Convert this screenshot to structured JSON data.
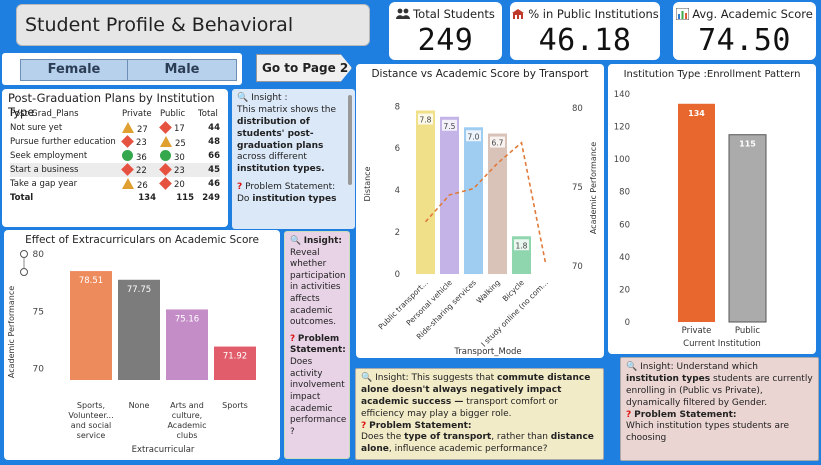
{
  "title": "Student Profile & Behavioral Insights",
  "kpis": [
    {
      "label": "Total Students",
      "value": "249",
      "icon": "people-icon"
    },
    {
      "label": "% in Public Institutions",
      "value": "46.18",
      "icon": "institution-icon"
    },
    {
      "label": "Avg. Academic Score",
      "value": "74.50",
      "icon": "bar-chart-icon"
    }
  ],
  "gender_slicer": {
    "female": "Female",
    "male": "Male"
  },
  "nav": {
    "goto_label": "Go to Page 2"
  },
  "matrix": {
    "title": "Post-Graduation Plans by Institution Type",
    "headers": [
      "Post-Grad_Plans",
      "Private",
      "Public",
      "Total"
    ],
    "rows": [
      {
        "plan": "Not sure yet",
        "private": "27",
        "private_shape": "triangle",
        "public": "17",
        "public_shape": "diamond",
        "total": "44"
      },
      {
        "plan": "Pursue further education",
        "private": "23",
        "private_shape": "diamond",
        "public": "25",
        "public_shape": "triangle",
        "total": "48"
      },
      {
        "plan": "Seek employment",
        "private": "36",
        "private_shape": "circle",
        "public": "30",
        "public_shape": "circle",
        "total": "66"
      },
      {
        "plan": "Start a business",
        "private": "22",
        "private_shape": "diamond",
        "public": "23",
        "public_shape": "diamond",
        "total": "45"
      },
      {
        "plan": "Take a gap year",
        "private": "26",
        "private_shape": "triangle",
        "public": "20",
        "public_shape": "diamond",
        "total": "46"
      }
    ],
    "total_row": {
      "label": "Total",
      "private": "134",
      "public": "115",
      "total": "249"
    },
    "shape_colors": {
      "triangle": "#e0a030",
      "diamond": "#e55240",
      "circle": "#35a84d"
    }
  },
  "insight_matrix": {
    "heading": "Insight :",
    "text_a": "This matrix shows the ",
    "text_b": "distribution of students' post-graduation plans",
    "text_c": " across different ",
    "text_d": "institution types.",
    "problem_label": "Problem Statement:",
    "problem_a": "Do ",
    "problem_b": "institution types"
  },
  "insight_extra": {
    "heading": "Insight:",
    "text": "Reveal whether participation in activities affects academic outcomes.",
    "problem_label": "Problem Statement:",
    "problem_text": "Does activity involvement impact academic performance ?"
  },
  "insight_transport": {
    "lead": "Insight: This suggests that ",
    "bold": "commute distance alone doesn't always negatively impact academic success —",
    "rest": " transport comfort or efficiency may play a bigger role.",
    "problem_label": "Problem Statement:",
    "problem_a": "Does the ",
    "problem_b": "type of transport",
    "problem_c": ", rather than ",
    "problem_d": "distance alone",
    "problem_e": ", influence academic performance?"
  },
  "insight_inst": {
    "lead": "Insight: Understand which ",
    "bold": "institution types",
    "rest": " students are currently enrolling in (Public vs Private), dynamically filtered by Gender.",
    "problem_label": "Problem Statement:",
    "problem_text": "Which institution types students are choosing"
  },
  "chart_data": [
    {
      "type": "bar",
      "title": "Effect of Extracurriculars on Academic Score",
      "xlabel": "Extracurricular",
      "ylabel": "Academic Performance",
      "categories": [
        "Sports, Volunteer... and social service",
        "None",
        "Arts and culture, Academic clubs",
        "Sports"
      ],
      "category_lines": [
        [
          "Sports,",
          "Volunteer...",
          "and social",
          "service"
        ],
        [
          "None"
        ],
        [
          "Arts and",
          "culture,",
          "Academic",
          "clubs"
        ],
        [
          "Sports"
        ]
      ],
      "values": [
        78.51,
        77.75,
        75.16,
        71.92
      ],
      "labels": [
        "78.51",
        "77.75",
        "75.16",
        "71.92"
      ],
      "colors": [
        "#ee8b5d",
        "#7c7c7c",
        "#c48dc8",
        "#e25d6b"
      ],
      "ylim": [
        69,
        80
      ],
      "yticks": [
        70,
        75,
        80
      ]
    },
    {
      "type": "bar+line",
      "title": "Distance vs Academic Score by Transport",
      "xlabel": "Transport_Mode",
      "ylabel": "Distance",
      "ylabel2": "Academic Performance",
      "categories": [
        "Public transport...",
        "Personal vehicle",
        "Ride-sharing services",
        "Walking",
        "Bicycle",
        "I study online (no com..."
      ],
      "series": [
        {
          "name": "Distance",
          "values": [
            7.8,
            7.5,
            7.0,
            6.7,
            1.8,
            0.0
          ]
        },
        {
          "name": "Academic Performance",
          "values": [
            72.8,
            74.5,
            74.9,
            76.5,
            77.8,
            70.2
          ]
        }
      ],
      "bar_labels": [
        "7.8",
        "7.5",
        "7.0",
        "6.7",
        "1.8",
        ""
      ],
      "colors": [
        "#f0e08a",
        "#c3b3e6",
        "#9fcdf2",
        "#d9c2b8",
        "#8fd6ae",
        "#e07b39"
      ],
      "ylim": [
        0,
        8.3
      ],
      "yticks": [
        0,
        2,
        4,
        6,
        8
      ],
      "ylim2": [
        69.5,
        80.5
      ],
      "yticks2": [
        70,
        75,
        80
      ]
    },
    {
      "type": "bar",
      "title": "Institution Type :Enrollment Pattern",
      "xlabel": "Current Institution",
      "categories": [
        "Private",
        "Public"
      ],
      "values": [
        134,
        115
      ],
      "labels": [
        "134",
        "115"
      ],
      "colors": [
        "#e8672f",
        "#ababab"
      ],
      "ylim": [
        0,
        140
      ],
      "yticks": [
        0,
        20,
        40,
        60,
        80,
        100,
        120,
        140
      ]
    }
  ]
}
